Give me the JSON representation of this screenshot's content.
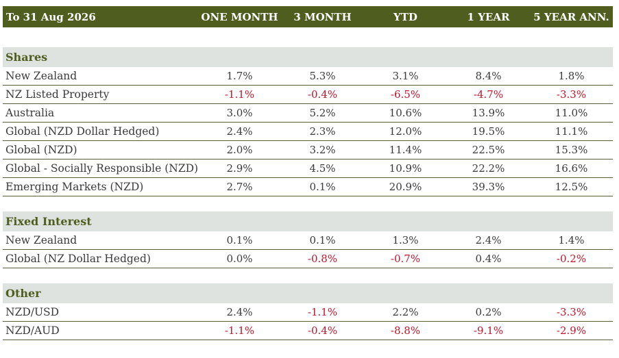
{
  "header": {
    "title": "To 31 Aug 2026",
    "columns": [
      "ONE MONTH",
      "3 MONTH",
      "YTD",
      "1 YEAR",
      "5 YEAR ANN."
    ]
  },
  "sections": [
    {
      "name": "Shares",
      "rows": [
        {
          "label": "New Zealand",
          "values": [
            "1.7%",
            "5.3%",
            "3.1%",
            "8.4%",
            "1.8%"
          ]
        },
        {
          "label": "NZ Listed Property",
          "values": [
            "-1.1%",
            "-0.4%",
            "-6.5%",
            "-4.7%",
            "-3.3%"
          ]
        },
        {
          "label": "Australia",
          "values": [
            "3.0%",
            "5.2%",
            "10.6%",
            "13.9%",
            "11.0%"
          ]
        },
        {
          "label": "Global (NZD Dollar Hedged)",
          "values": [
            "2.4%",
            "2.3%",
            "12.0%",
            "19.5%",
            "11.1%"
          ]
        },
        {
          "label": "Global (NZD)",
          "values": [
            "2.0%",
            "3.2%",
            "11.4%",
            "22.5%",
            "15.3%"
          ]
        },
        {
          "label": "Global - Socially Responsible (NZD)",
          "values": [
            "2.9%",
            "4.5%",
            "10.9%",
            "22.2%",
            "16.6%"
          ]
        },
        {
          "label": "Emerging Markets (NZD)",
          "values": [
            "2.7%",
            "0.1%",
            "20.9%",
            "39.3%",
            "12.5%"
          ]
        }
      ]
    },
    {
      "name": "Fixed Interest",
      "rows": [
        {
          "label": "New Zealand",
          "values": [
            "0.1%",
            "0.1%",
            "1.3%",
            "2.4%",
            "1.4%"
          ]
        },
        {
          "label": "Global (NZ Dollar Hedged)",
          "values": [
            "0.0%",
            "-0.8%",
            "-0.7%",
            "0.4%",
            "-0.2%"
          ]
        }
      ]
    },
    {
      "name": "Other",
      "rows": [
        {
          "label": "NZD/USD",
          "values": [
            "2.4%",
            "-1.1%",
            "2.2%",
            "0.2%",
            "-3.3%"
          ]
        },
        {
          "label": "NZD/AUD",
          "values": [
            "-1.1%",
            "-0.4%",
            "-8.8%",
            "-9.1%",
            "-2.9%"
          ]
        }
      ]
    }
  ],
  "colors": {
    "header_bg": "#4f5e1f",
    "section_bg": "#dfe3df",
    "section_text": "#4f5e1f",
    "negative": "#c0152a",
    "rule": "#565c3c"
  }
}
